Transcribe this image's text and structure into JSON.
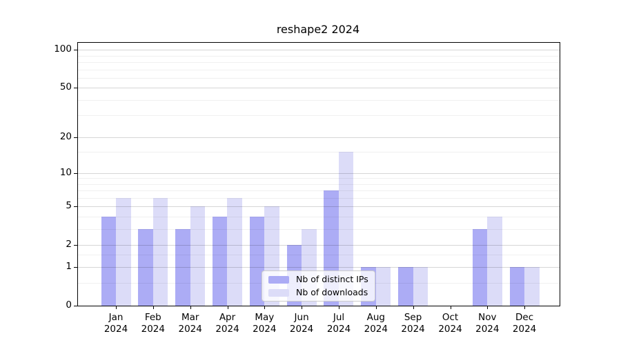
{
  "chart_data": {
    "type": "bar",
    "title": "reshape2 2024",
    "categories": [
      "Jan 2024",
      "Feb 2024",
      "Mar 2024",
      "Apr 2024",
      "May 2024",
      "Jun 2024",
      "Jul 2024",
      "Aug 2024",
      "Sep 2024",
      "Oct 2024",
      "Nov 2024",
      "Dec 2024"
    ],
    "series": [
      {
        "name": "Nb of distinct IPs",
        "color": "#acacf5",
        "values": [
          4,
          3,
          3,
          4,
          4,
          2,
          7,
          1,
          1,
          0,
          3,
          1
        ]
      },
      {
        "name": "Nb of downloads",
        "color": "#dcdcf8",
        "values": [
          6,
          6,
          5,
          6,
          5,
          3,
          15,
          1,
          1,
          0,
          4,
          1
        ]
      }
    ],
    "xlabel": "",
    "ylabel": "",
    "yscale": "log1p",
    "y_ticks": [
      0,
      1,
      2,
      5,
      10,
      20,
      50,
      100
    ],
    "y_minor_ticks": [
      0.5,
      1.5,
      3,
      4,
      6,
      7,
      8,
      9,
      15,
      30,
      40,
      60,
      70,
      80,
      90
    ],
    "ylim": [
      0,
      114
    ],
    "grid": "horizontal-only",
    "legend_position": "lower center"
  }
}
